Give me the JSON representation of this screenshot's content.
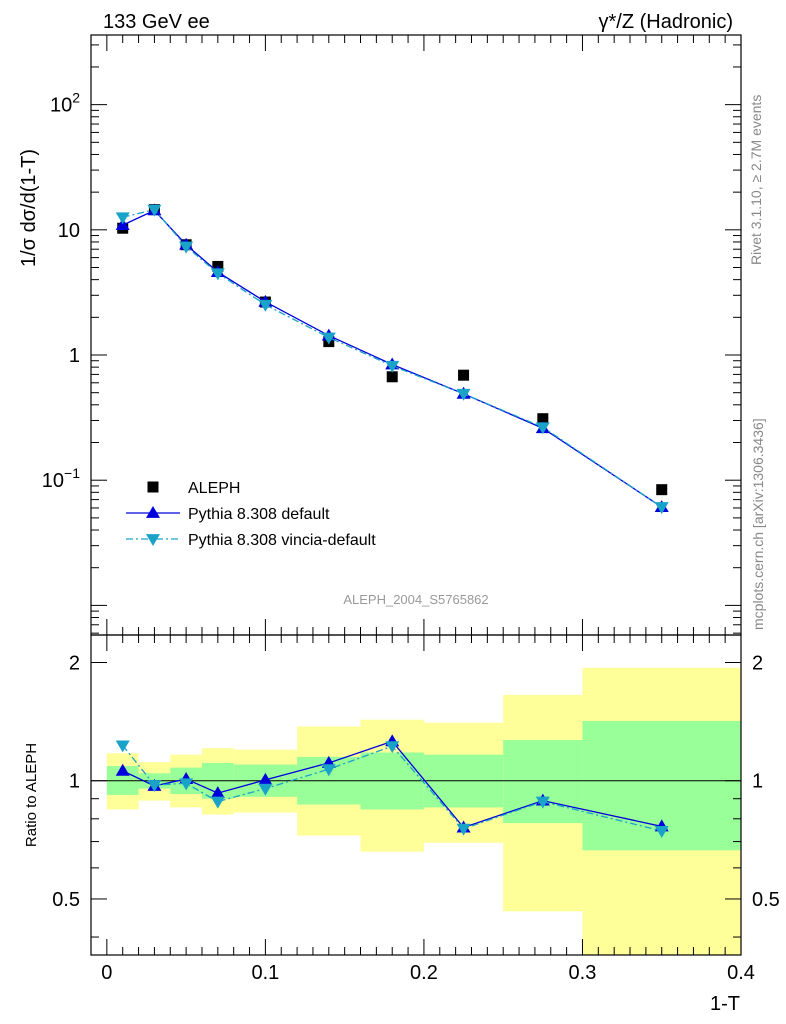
{
  "header": {
    "left": "133 GeV ee",
    "right": "γ*/Z (Hadronic)"
  },
  "side_labels": {
    "rivet": "Rivet 3.1.10, ≥ 2.7M events",
    "mcplots": "mcplots.cern.ch [arXiv:1306.3436]"
  },
  "watermark": "ALEPH_2004_S5765862",
  "chart_data": [
    {
      "type": "scatter",
      "ylabel": "1/σ dσ/d(1-T)",
      "yscale": "log",
      "xlim": [
        -0.01,
        0.4
      ],
      "ylim": [
        0.0058,
        360
      ],
      "y_ticks": [
        {
          "value": 0.1,
          "base": "10",
          "exp": "−1"
        },
        {
          "value": 1,
          "text": "1"
        },
        {
          "value": 10,
          "text": "10"
        },
        {
          "value": 100,
          "base": "10",
          "exp": "2"
        }
      ],
      "x": [
        0.01,
        0.03,
        0.05,
        0.07,
        0.1,
        0.14,
        0.18,
        0.225,
        0.275,
        0.35
      ],
      "series": [
        {
          "name": "ALEPH",
          "style": "data",
          "color": "#000000",
          "values": [
            10.3,
            14.5,
            7.6,
            5.1,
            2.65,
            1.28,
            0.67,
            0.69,
            0.31,
            0.084
          ]
        },
        {
          "name": "Pythia 8.308 default",
          "style": "solid",
          "marker": "triangle-up",
          "color": "#0000dd",
          "values": [
            10.9,
            14.3,
            7.6,
            4.6,
            2.66,
            1.43,
            0.84,
            0.49,
            0.26,
            0.061
          ]
        },
        {
          "name": "Pythia 8.308 vincia-default",
          "style": "dashdot",
          "marker": "triangle-down",
          "color": "#1aa3c8",
          "values": [
            12.6,
            14.5,
            7.35,
            4.5,
            2.52,
            1.38,
            0.82,
            0.49,
            0.265,
            0.061
          ]
        }
      ]
    },
    {
      "type": "line",
      "xlabel": "1-T",
      "ylabel": "Ratio to ALEPH",
      "yscale": "log",
      "xlim": [
        -0.01,
        0.4
      ],
      "ylim": [
        0.36,
        2.35
      ],
      "x_ticks": [
        "0",
        "0.1",
        "0.2",
        "0.3",
        "0.4"
      ],
      "y_ticks": [
        "0.5",
        "1",
        "2"
      ],
      "reference_line": 1,
      "bins": [
        {
          "lo": 0.0,
          "hi": 0.02,
          "green": [
            0.92,
            1.09
          ],
          "yellow": [
            0.845,
            1.175
          ]
        },
        {
          "lo": 0.02,
          "hi": 0.04,
          "green": [
            0.955,
            1.045
          ],
          "yellow": [
            0.89,
            1.115
          ]
        },
        {
          "lo": 0.04,
          "hi": 0.06,
          "green": [
            0.925,
            1.08
          ],
          "yellow": [
            0.855,
            1.165
          ]
        },
        {
          "lo": 0.06,
          "hi": 0.08,
          "green": [
            0.9,
            1.11
          ],
          "yellow": [
            0.82,
            1.21
          ]
        },
        {
          "lo": 0.08,
          "hi": 0.12,
          "green": [
            0.91,
            1.1
          ],
          "yellow": [
            0.83,
            1.2
          ]
        },
        {
          "lo": 0.12,
          "hi": 0.16,
          "green": [
            0.87,
            1.15
          ],
          "yellow": [
            0.725,
            1.375
          ]
        },
        {
          "lo": 0.16,
          "hi": 0.2,
          "green": [
            0.845,
            1.18
          ],
          "yellow": [
            0.66,
            1.43
          ]
        },
        {
          "lo": 0.2,
          "hi": 0.25,
          "green": [
            0.855,
            1.165
          ],
          "yellow": [
            0.695,
            1.405
          ]
        },
        {
          "lo": 0.25,
          "hi": 0.3,
          "green": [
            0.78,
            1.27
          ],
          "yellow": [
            0.465,
            1.655
          ]
        },
        {
          "lo": 0.3,
          "hi": 0.4,
          "green": [
            0.665,
            1.42
          ],
          "yellow": [
            0.36,
            1.94
          ]
        }
      ],
      "series": [
        {
          "name": "Pythia 8.308 default",
          "style": "solid",
          "color": "#0000dd",
          "values": [
            1.06,
            0.97,
            1.01,
            0.93,
            1.005,
            1.11,
            1.26,
            0.76,
            0.89,
            0.765
          ]
        },
        {
          "name": "Pythia 8.308 vincia-default",
          "style": "dashdot",
          "color": "#1aa3c8",
          "values": [
            1.23,
            0.975,
            0.985,
            0.885,
            0.955,
            1.07,
            1.225,
            0.755,
            0.885,
            0.745
          ]
        }
      ]
    }
  ],
  "colors": {
    "band_green": "#99ff99",
    "band_yellow": "#ffff99"
  }
}
